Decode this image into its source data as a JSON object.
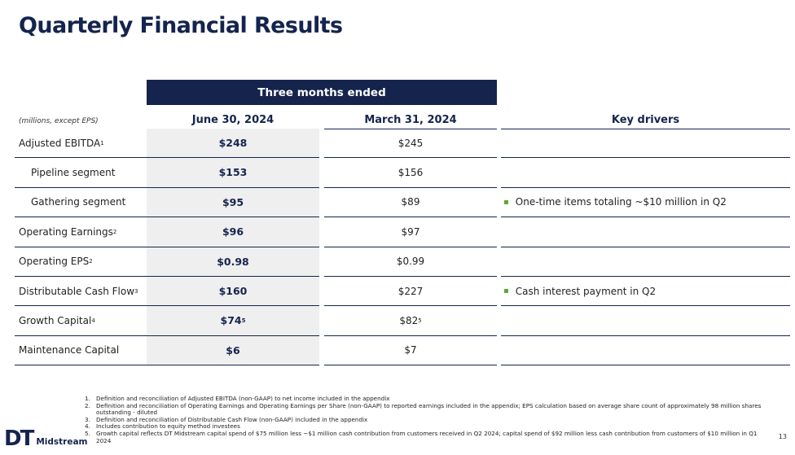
{
  "page": {
    "title": "Quarterly Financial Results",
    "page_number": "13"
  },
  "table": {
    "banner": "Three months ended",
    "units_note": "(millions, except EPS)",
    "columns": [
      "June 30, 2024",
      "March 31, 2024",
      "Key drivers"
    ],
    "rows": [
      {
        "label": "Adjusted EBITDA",
        "label_sup": "1",
        "june": "$248",
        "june_sup": "",
        "march": "$245",
        "march_sup": "",
        "driver": ""
      },
      {
        "label": "Pipeline segment",
        "label_sup": "",
        "june": "$153",
        "june_sup": "",
        "march": "$156",
        "march_sup": "",
        "driver": ""
      },
      {
        "label": "Gathering segment",
        "label_sup": "",
        "june": "$95",
        "june_sup": "",
        "march": "$89",
        "march_sup": "",
        "driver": "One-time items totaling ~$10 million in Q2"
      },
      {
        "label": "Operating Earnings",
        "label_sup": "2",
        "june": "$96",
        "june_sup": "",
        "march": "$97",
        "march_sup": "",
        "driver": ""
      },
      {
        "label": "Operating EPS",
        "label_sup": "2",
        "june": "$0.98",
        "june_sup": "",
        "march": "$0.99",
        "march_sup": "",
        "driver": ""
      },
      {
        "label": "Distributable Cash Flow",
        "label_sup": "3",
        "june": "$160",
        "june_sup": "",
        "march": "$227",
        "march_sup": "",
        "driver": "Cash interest payment in Q2"
      },
      {
        "label": "Growth Capital",
        "label_sup": "4",
        "june": "$74",
        "june_sup": "5",
        "march": "$82",
        "march_sup": "5",
        "driver": ""
      },
      {
        "label": "Maintenance Capital",
        "label_sup": "",
        "june": "$6",
        "june_sup": "",
        "march": "$7",
        "march_sup": "",
        "driver": ""
      }
    ]
  },
  "footnotes": [
    {
      "num": "1.",
      "text": "Definition and reconciliation of Adjusted EBITDA (non-GAAP) to net income included in the appendix"
    },
    {
      "num": "2.",
      "text": "Definition and reconciliation of Operating Earnings and Operating Earnings per Share (non-GAAP) to reported earnings included in the appendix; EPS calculation based on average share count of approximately 98 million shares outstanding - diluted"
    },
    {
      "num": "3.",
      "text": "Definition and reconciliation of Distributable Cash Flow (non-GAAP) included in the appendix"
    },
    {
      "num": "4.",
      "text": "Includes contribution to equity method investees"
    },
    {
      "num": "5.",
      "text": "Growth capital reflects DT Midstream capital spend of $75 million less ~$1 million cash contribution from customers received in Q2 2024; capital spend of $92 million less cash contribution from customers of $10 million in Q1 2024"
    }
  ],
  "logo": {
    "mark": "DT",
    "word": "Midstream"
  },
  "colors": {
    "navy": "#14244d",
    "bullet_green": "#5aa832",
    "shade": "#efefef"
  }
}
